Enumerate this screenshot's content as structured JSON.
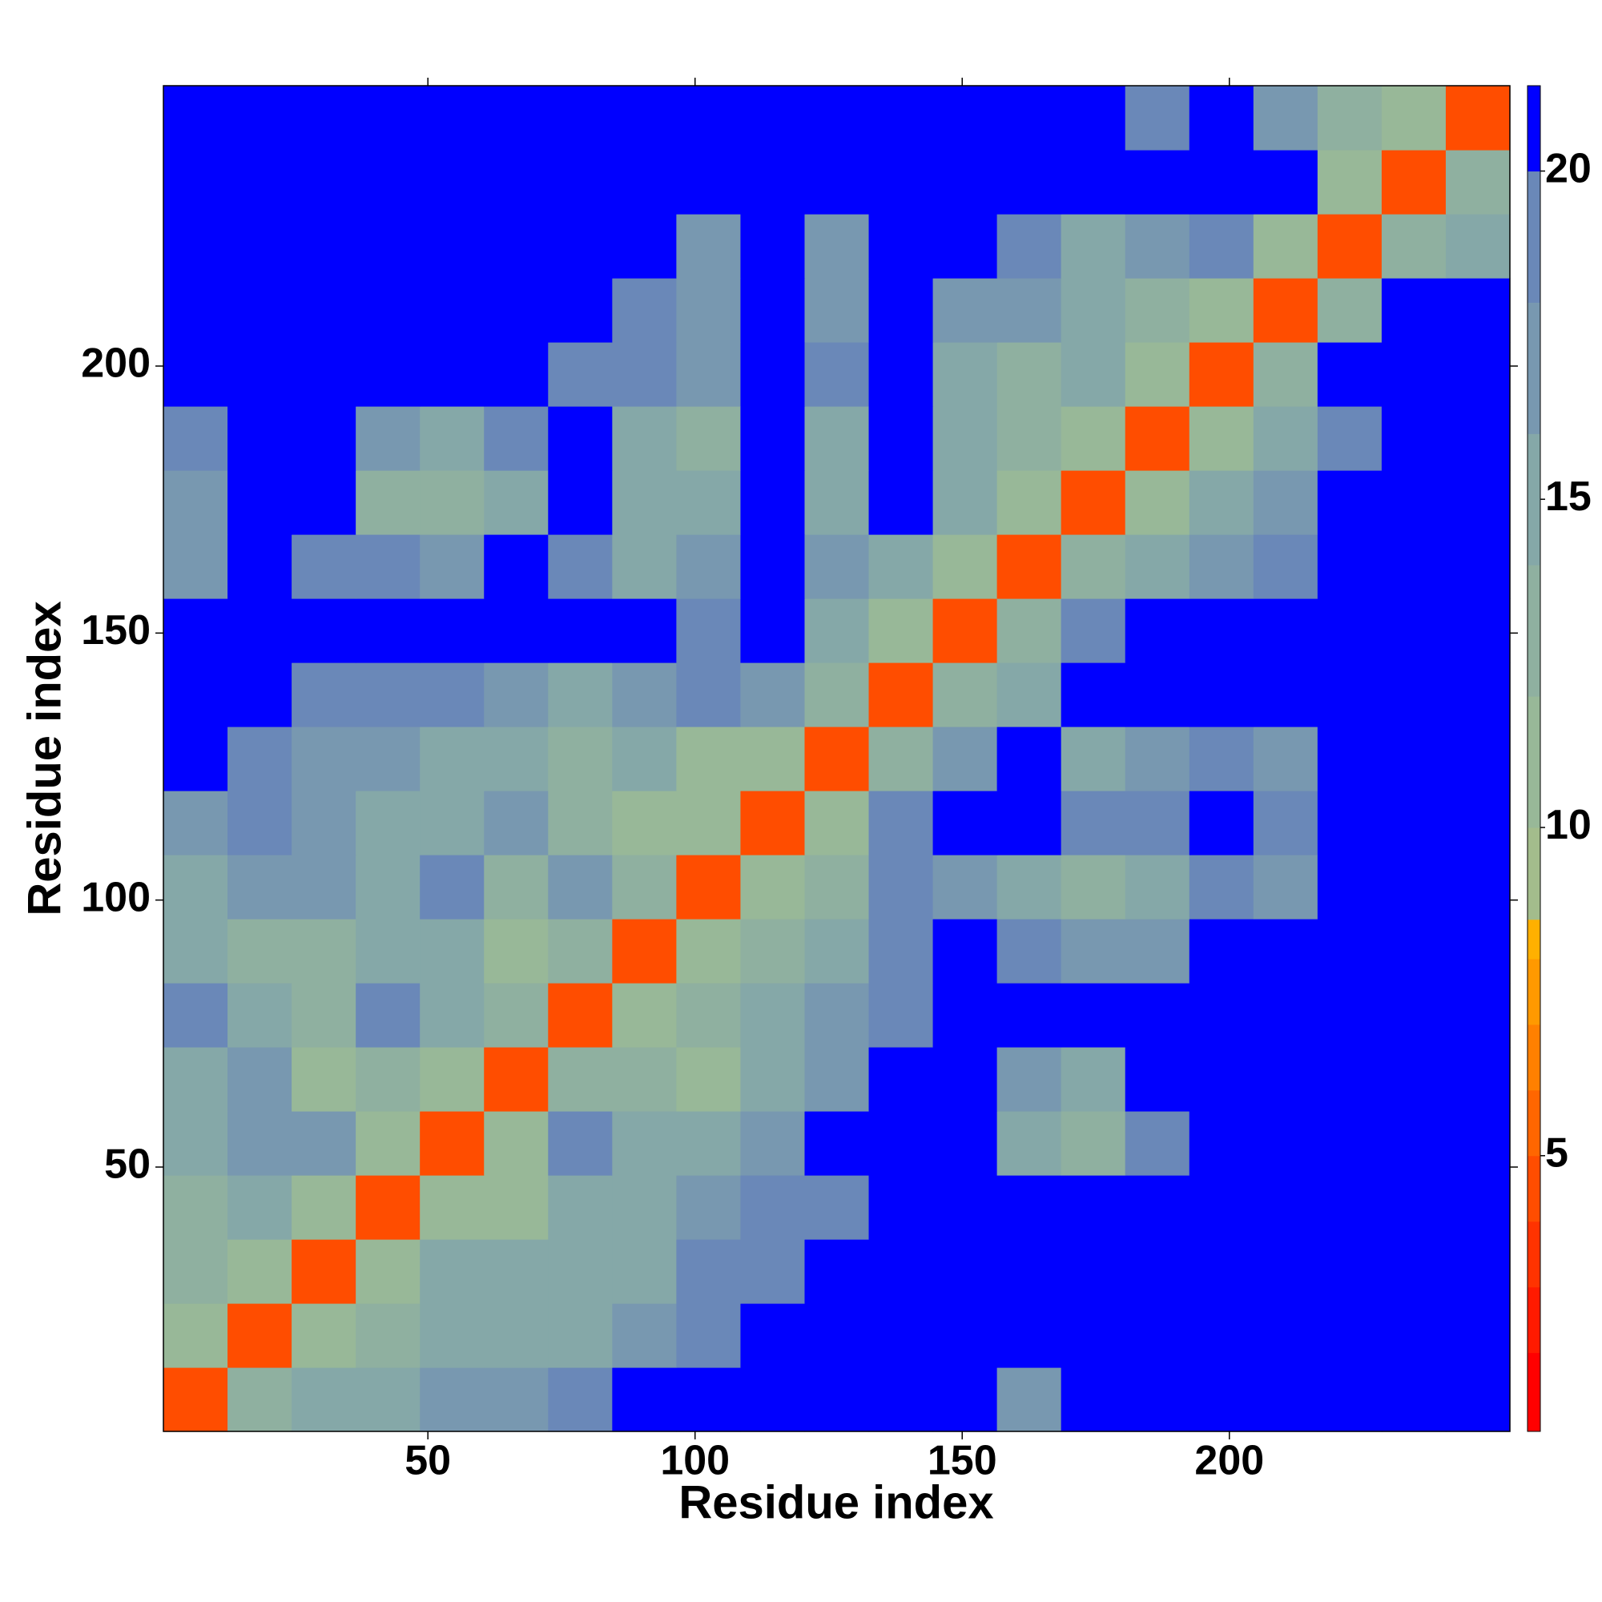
{
  "chart_data": {
    "type": "heatmap",
    "xlabel": "Residue index",
    "ylabel": "Residue index",
    "xlim": [
      0.5,
      252.5
    ],
    "ylim": [
      0.5,
      252.5
    ],
    "xticks": [
      50,
      100,
      150,
      200
    ],
    "yticks": [
      50,
      100,
      150,
      200
    ],
    "x": [
      6.5,
      18.5,
      30.5,
      42.5,
      54.5,
      66.5,
      78.5,
      90.5,
      102.5,
      114.5,
      126.5,
      138.5,
      150.5,
      162.5,
      174.5,
      186.5,
      198.5,
      210.5,
      222.5,
      234.5,
      246.5
    ],
    "y": [
      6.5,
      18.5,
      30.5,
      42.5,
      54.5,
      66.5,
      78.5,
      90.5,
      102.5,
      114.5,
      126.5,
      138.5,
      150.5,
      162.5,
      174.5,
      186.5,
      198.5,
      210.5,
      222.5,
      234.5,
      246.5
    ],
    "z": [
      [
        5,
        13,
        15,
        16,
        17,
        17,
        19,
        21,
        21,
        21,
        21,
        21,
        21,
        18,
        21,
        21,
        21,
        21,
        21,
        21,
        21
      ],
      [
        12,
        5,
        12,
        14,
        16,
        15,
        16,
        18,
        20,
        21,
        21,
        21,
        21,
        21,
        21,
        21,
        21,
        21,
        21,
        21,
        21
      ],
      [
        14,
        12,
        5,
        11,
        15,
        15,
        15,
        16,
        19,
        20,
        21,
        21,
        21,
        21,
        21,
        21,
        21,
        21,
        21,
        21,
        21
      ],
      [
        13,
        15,
        12,
        5,
        12,
        11,
        15,
        16,
        17,
        19,
        20,
        21,
        21,
        21,
        21,
        21,
        21,
        21,
        21,
        21,
        21
      ],
      [
        16,
        17,
        17,
        11,
        5,
        11,
        20,
        16,
        15,
        17,
        21,
        21,
        21,
        15,
        14,
        19,
        21,
        21,
        21,
        21,
        21
      ],
      [
        15,
        18,
        12,
        13,
        11,
        5,
        13,
        14,
        12,
        16,
        18,
        21,
        21,
        17,
        16,
        21,
        21,
        21,
        21,
        21,
        21
      ],
      [
        19,
        15,
        14,
        20,
        16,
        13,
        5,
        12,
        14,
        15,
        17,
        20,
        21,
        21,
        21,
        21,
        21,
        21,
        21,
        21,
        21
      ],
      [
        15,
        14,
        14,
        16,
        15,
        11,
        13,
        5,
        12,
        14,
        16,
        19,
        21,
        20,
        18,
        18,
        21,
        21,
        21,
        21,
        21
      ],
      [
        16,
        17,
        17,
        15,
        19,
        13,
        18,
        13,
        5,
        12,
        13,
        19,
        18,
        15,
        14,
        16,
        20,
        17,
        21,
        21,
        21
      ],
      [
        17,
        19,
        17,
        16,
        15,
        17,
        14,
        12,
        12,
        5,
        12,
        19,
        21,
        21,
        19,
        20,
        21,
        19,
        21,
        21,
        21
      ],
      [
        21,
        19,
        17,
        18,
        16,
        15,
        13,
        16,
        12,
        12,
        5,
        14,
        17,
        21,
        16,
        17,
        20,
        17,
        21,
        21,
        21
      ],
      [
        21,
        21,
        20,
        20,
        19,
        18,
        16,
        17,
        19,
        18,
        13,
        5,
        13,
        16,
        21,
        21,
        21,
        21,
        21,
        21,
        21
      ],
      [
        21,
        21,
        21,
        21,
        21,
        21,
        21,
        21,
        19,
        21,
        16,
        12,
        5,
        13,
        19,
        21,
        21,
        21,
        21,
        21,
        21
      ],
      [
        17,
        21,
        19,
        19,
        18,
        21,
        19,
        16,
        17,
        21,
        18,
        16,
        12,
        5,
        13,
        16,
        17,
        20,
        21,
        21,
        21
      ],
      [
        18,
        21,
        21,
        14,
        14,
        16,
        21,
        16,
        15,
        21,
        16,
        21,
        15,
        12,
        5,
        12,
        15,
        17,
        21,
        21,
        21
      ],
      [
        20,
        21,
        21,
        17,
        16,
        19,
        21,
        16,
        14,
        21,
        15,
        21,
        15,
        13,
        12,
        5,
        12,
        15,
        20,
        21,
        21
      ],
      [
        21,
        21,
        21,
        21,
        21,
        21,
        20,
        19,
        18,
        21,
        19,
        21,
        15,
        14,
        15,
        12,
        5,
        13,
        21,
        21,
        21
      ],
      [
        21,
        21,
        21,
        21,
        21,
        21,
        21,
        20,
        18,
        21,
        17,
        21,
        18,
        17,
        15,
        14,
        12,
        5,
        13,
        21,
        21
      ],
      [
        21,
        21,
        21,
        21,
        21,
        21,
        21,
        21,
        18,
        21,
        18,
        21,
        21,
        19,
        16,
        17,
        19,
        12,
        5,
        13,
        16
      ],
      [
        21,
        21,
        21,
        21,
        21,
        21,
        21,
        21,
        21,
        21,
        21,
        21,
        21,
        21,
        21,
        21,
        21,
        21,
        12,
        5,
        13
      ],
      [
        21,
        21,
        21,
        21,
        21,
        21,
        21,
        21,
        21,
        21,
        21,
        21,
        21,
        21,
        21,
        20,
        21,
        17,
        14,
        12,
        5
      ]
    ],
    "clim": [
      0.8,
      21.3
    ],
    "cticks": [
      5,
      10,
      15,
      20
    ],
    "colorbar_levels": [
      0.8,
      2,
      3,
      4,
      5,
      6,
      7,
      8,
      8.6,
      10,
      12,
      14,
      16,
      18,
      20,
      21.3
    ],
    "colorbar_colors": [
      "#ff0000",
      "#ff1a00",
      "#ff3300",
      "#ff4d00",
      "#ff6600",
      "#ff8000",
      "#ff9900",
      "#ffb000",
      "#a3bc8c",
      "#98b898",
      "#8fb0a0",
      "#85a8a8",
      "#7898b0",
      "#6a88b8",
      "#0000ff"
    ]
  }
}
